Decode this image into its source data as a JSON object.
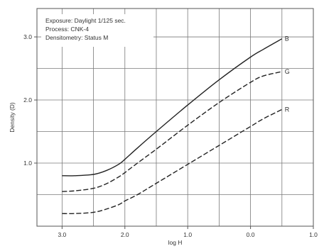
{
  "chart_data": {
    "type": "line",
    "title": "",
    "xlabel": "log H",
    "ylabel": "Density (D)",
    "xlim": [
      -3.4,
      1.0
    ],
    "ylim": [
      0.0,
      3.45
    ],
    "x_ticks": [
      -3.0,
      -2.0,
      -1.0,
      0.0,
      1.0
    ],
    "x_tick_labels": [
      "3.0",
      "2.0",
      "1.0",
      "0.0",
      "1.0"
    ],
    "y_ticks": [
      1.0,
      2.0,
      3.0
    ],
    "y_tick_labels": [
      "1.0",
      "2.0",
      "3.0"
    ],
    "x_grid_step": 0.5,
    "y_grid_step": 0.5,
    "grid": true,
    "annotations": [
      "Exposure: Daylight 1/125 sec.",
      "Process: CNK-4",
      "Densitometry: Status M"
    ],
    "series": [
      {
        "name": "B",
        "style": "solid",
        "color": "#222222",
        "x": [
          -3.0,
          -2.8,
          -2.5,
          -2.3,
          -2.1,
          -2.0,
          -1.8,
          -1.5,
          -1.0,
          -0.5,
          0.0,
          0.2,
          0.5
        ],
        "y": [
          0.8,
          0.8,
          0.82,
          0.88,
          0.98,
          1.06,
          1.24,
          1.5,
          1.92,
          2.32,
          2.68,
          2.8,
          2.97
        ]
      },
      {
        "name": "G",
        "style": "dashed",
        "color": "#222222",
        "x": [
          -3.0,
          -2.8,
          -2.5,
          -2.3,
          -2.1,
          -2.0,
          -1.8,
          -1.5,
          -1.0,
          -0.5,
          0.0,
          0.2,
          0.5
        ],
        "y": [
          0.55,
          0.56,
          0.6,
          0.67,
          0.78,
          0.85,
          1.0,
          1.22,
          1.6,
          1.96,
          2.28,
          2.38,
          2.45
        ]
      },
      {
        "name": "R",
        "style": "dashed",
        "color": "#222222",
        "x": [
          -3.0,
          -2.8,
          -2.5,
          -2.3,
          -2.1,
          -2.0,
          -1.8,
          -1.5,
          -1.0,
          -0.5,
          0.0,
          0.2,
          0.5
        ],
        "y": [
          0.2,
          0.2,
          0.22,
          0.27,
          0.34,
          0.4,
          0.5,
          0.68,
          0.98,
          1.28,
          1.58,
          1.7,
          1.85
        ]
      }
    ]
  }
}
